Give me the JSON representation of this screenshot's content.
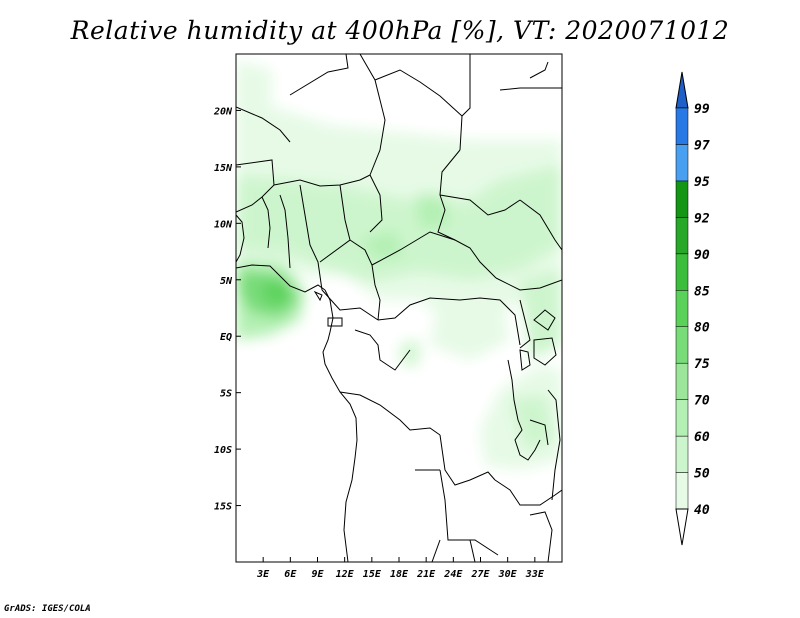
{
  "title": "Relative humidity at 400hPa [%], VT: 2020071012",
  "credit": "GrADS: IGES/COLA",
  "map": {
    "lon_range": [
      0,
      36
    ],
    "lat_range": [
      -20,
      25
    ],
    "lon_ticks": [
      "3E",
      "6E",
      "9E",
      "12E",
      "15E",
      "18E",
      "21E",
      "24E",
      "27E",
      "30E",
      "33E"
    ],
    "lat_ticks": [
      "20N",
      "15N",
      "10N",
      "5N",
      "EQ",
      "5S",
      "10S",
      "15S"
    ]
  },
  "colorbar": {
    "labels": [
      "40",
      "50",
      "60",
      "70",
      "75",
      "80",
      "85",
      "90",
      "92",
      "95",
      "97",
      "99"
    ],
    "colors": [
      "#ffffff",
      "#e6fae6",
      "#cdf5cd",
      "#b4f0b4",
      "#9be69b",
      "#78dc78",
      "#5ad25a",
      "#3cbe3c",
      "#28a828",
      "#149614",
      "#4aa0f0",
      "#2878e6",
      "#1e5fc8"
    ]
  }
}
